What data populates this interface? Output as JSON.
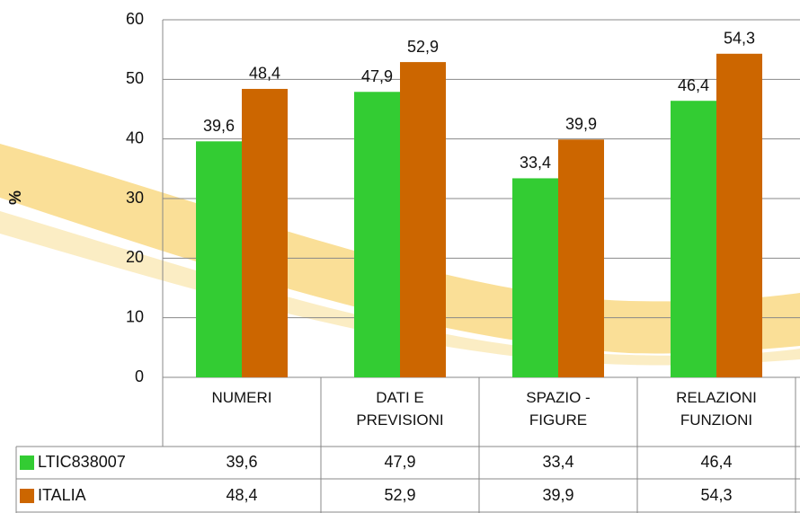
{
  "chart_data": {
    "type": "bar",
    "y_label": "%",
    "categories": [
      "NUMERI",
      "DATI E\nPREVISIONI",
      "SPAZIO -\nFIGURE",
      "RELAZIONI\nFUNZIONI"
    ],
    "series": [
      {
        "name": "LTIC838007",
        "color": "#33cc33",
        "values": [
          39.6,
          47.9,
          33.4,
          46.4
        ],
        "value_labels": [
          "39,6",
          "47,9",
          "33,4",
          "46,4"
        ]
      },
      {
        "name": "ITALIA",
        "color": "#cc6600",
        "values": [
          48.4,
          52.9,
          39.9,
          54.3
        ],
        "value_labels": [
          "48,4",
          "52,9",
          "39,9",
          "54,3"
        ]
      }
    ],
    "ylim": [
      0,
      60
    ],
    "yticks": [
      0,
      10,
      20,
      30,
      40,
      50,
      60
    ],
    "grid": true
  }
}
